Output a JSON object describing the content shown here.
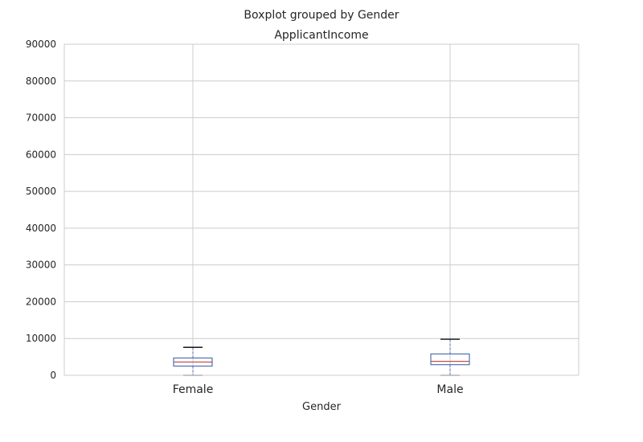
{
  "chart_data": {
    "type": "boxplot",
    "suptitle": "Boxplot grouped by Gender",
    "title": "ApplicantIncome",
    "xlabel": "Gender",
    "ylabel": "",
    "categories": [
      "Female",
      "Male"
    ],
    "ylim": [
      0,
      90000
    ],
    "yticks": [
      0,
      10000,
      20000,
      30000,
      40000,
      50000,
      60000,
      70000,
      80000,
      90000
    ],
    "ytick_labels": [
      "0",
      "10000",
      "20000",
      "30000",
      "40000",
      "50000",
      "60000",
      "70000",
      "80000",
      "90000"
    ],
    "boxes": [
      {
        "category": "Female",
        "whisker_low": 0,
        "q1": 2500,
        "median": 3600,
        "q3": 4700,
        "whisker_high": 7600
      },
      {
        "category": "Male",
        "whisker_low": 0,
        "q1": 2900,
        "median": 3800,
        "q3": 5800,
        "whisker_high": 9800
      }
    ],
    "grid": true,
    "colors": {
      "box": "#4c72b0",
      "median": "#c44e52",
      "cap": "#000000",
      "grid": "#cccccc",
      "spine": "#cccccc",
      "text": "#262626"
    }
  }
}
